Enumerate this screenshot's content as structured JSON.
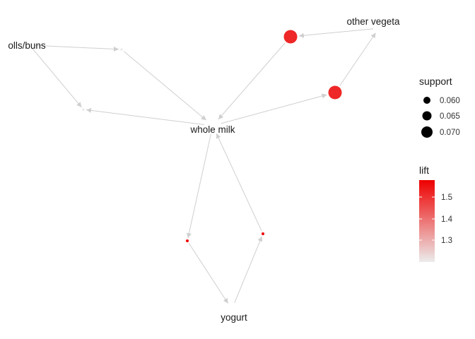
{
  "graph": {
    "nodes": [
      {
        "id": "rolls",
        "label": "olls/buns",
        "kind": "item"
      },
      {
        "id": "whole_milk",
        "label": "whole milk",
        "kind": "item"
      },
      {
        "id": "other_veg",
        "label": "other vegeta",
        "kind": "item"
      },
      {
        "id": "yogurt",
        "label": "yogurt",
        "kind": "item"
      },
      {
        "id": "r1",
        "kind": "rule",
        "support": 0.057,
        "lift": 1.21
      },
      {
        "id": "r2",
        "kind": "rule",
        "support": 0.057,
        "lift": 1.21
      },
      {
        "id": "r3",
        "kind": "rule",
        "support": 0.075,
        "lift": 1.51
      },
      {
        "id": "r4",
        "kind": "rule",
        "support": 0.075,
        "lift": 1.51
      },
      {
        "id": "r5",
        "kind": "rule",
        "support": 0.056,
        "lift": 1.57
      },
      {
        "id": "r6",
        "kind": "rule",
        "support": 0.056,
        "lift": 1.57
      }
    ],
    "edges": [
      {
        "from": "rolls",
        "to": "r1"
      },
      {
        "from": "r1",
        "to": "whole_milk"
      },
      {
        "from": "rolls",
        "to": "r2"
      },
      {
        "from": "whole_milk",
        "to": "r2"
      },
      {
        "from": "other_veg",
        "to": "r3"
      },
      {
        "from": "r3",
        "to": "whole_milk"
      },
      {
        "from": "whole_milk",
        "to": "r4"
      },
      {
        "from": "r4",
        "to": "other_veg"
      },
      {
        "from": "whole_milk",
        "to": "r5"
      },
      {
        "from": "r5",
        "to": "yogurt"
      },
      {
        "from": "yogurt",
        "to": "r6"
      },
      {
        "from": "r6",
        "to": "whole_milk"
      }
    ]
  },
  "legend": {
    "support": {
      "title": "support",
      "entries": [
        {
          "label": "0.060",
          "value": 0.06
        },
        {
          "label": "0.065",
          "value": 0.065
        },
        {
          "label": "0.070",
          "value": 0.07
        }
      ]
    },
    "lift": {
      "title": "lift",
      "range": [
        1.21,
        1.57
      ],
      "ticks": [
        {
          "label": "1.5",
          "value": 1.5
        },
        {
          "label": "1.4",
          "value": 1.4
        },
        {
          "label": "1.3",
          "value": 1.3
        }
      ],
      "color_low": "#ececec",
      "color_high": "#ee0000"
    }
  },
  "colors": {
    "edge": "#cfcfcf",
    "node_label": "#1a1a1a",
    "support_key": "#000000"
  }
}
